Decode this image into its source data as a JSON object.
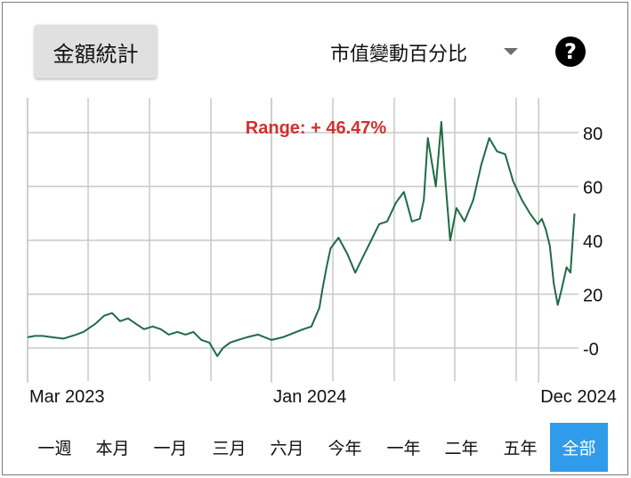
{
  "summary_button": {
    "label": "金額統計"
  },
  "metric_select": {
    "selected": "市值變動百分比"
  },
  "help_icon": {
    "glyph": "?"
  },
  "range_buttons": [
    {
      "label": "一週",
      "active": false
    },
    {
      "label": "本月",
      "active": false
    },
    {
      "label": "一月",
      "active": false
    },
    {
      "label": "三月",
      "active": false
    },
    {
      "label": "六月",
      "active": false
    },
    {
      "label": "今年",
      "active": false
    },
    {
      "label": "一年",
      "active": false
    },
    {
      "label": "二年",
      "active": false
    },
    {
      "label": "五年",
      "active": false
    },
    {
      "label": "全部",
      "active": true
    }
  ],
  "colors": {
    "line": "#1f6b45",
    "annotation": "#d32f2f",
    "grid": "#c8c8c8",
    "active_range": "#2f9bea"
  },
  "chart_data": {
    "type": "line",
    "title": "",
    "annotation": "Range: + 46.47%",
    "xlabel": "",
    "ylabel": "",
    "x_tick_labels": [
      "Mar 2023",
      "Jan 2024",
      "Dec 2024"
    ],
    "x_tick_dates": [
      "2023-03-01",
      "2024-01-01",
      "2024-12-01"
    ],
    "y_ticks": [
      0,
      20,
      40,
      60,
      80
    ],
    "y_tick_labels": [
      "-0",
      "20",
      "40",
      "60",
      "80"
    ],
    "ylim": [
      -4,
      90
    ],
    "xlim": [
      "2023-03-01",
      "2025-01-20"
    ],
    "grid": true,
    "y_axis_side": "right",
    "series": [
      {
        "x": [
          "2023-03-01",
          "2023-03-10",
          "2023-03-20",
          "2023-04-01",
          "2023-04-15",
          "2023-05-01",
          "2023-05-10",
          "2023-05-25",
          "2023-06-05",
          "2023-06-15",
          "2023-06-25",
          "2023-07-05",
          "2023-07-15",
          "2023-07-25",
          "2023-08-05",
          "2023-08-15",
          "2023-08-25",
          "2023-09-05",
          "2023-09-15",
          "2023-09-25",
          "2023-10-05",
          "2023-10-15",
          "2023-10-25",
          "2023-11-01",
          "2023-11-10",
          "2023-11-20",
          "2023-12-01",
          "2023-12-15",
          "2024-01-01",
          "2024-01-15",
          "2024-02-01",
          "2024-02-10",
          "2024-02-20",
          "2024-03-01",
          "2024-03-05",
          "2024-03-10",
          "2024-03-15",
          "2024-03-25",
          "2024-04-05",
          "2024-04-15",
          "2024-04-25",
          "2024-05-05",
          "2024-05-15",
          "2024-05-25",
          "2024-06-05",
          "2024-06-15",
          "2024-06-25",
          "2024-07-05",
          "2024-07-10",
          "2024-07-15",
          "2024-07-25",
          "2024-08-01",
          "2024-08-05",
          "2024-08-12",
          "2024-08-20",
          "2024-08-30",
          "2024-09-10",
          "2024-09-20",
          "2024-09-30",
          "2024-10-10",
          "2024-10-20",
          "2024-10-30",
          "2024-11-10",
          "2024-11-20",
          "2024-11-30",
          "2024-12-05",
          "2024-12-10",
          "2024-12-15",
          "2024-12-20",
          "2024-12-25",
          "2024-12-30",
          "2025-01-05",
          "2025-01-10",
          "2025-01-15"
        ],
        "y": [
          4,
          4.5,
          4.5,
          4,
          3.5,
          5,
          6,
          9,
          12,
          13,
          10,
          11,
          9,
          7,
          8,
          7,
          5,
          6,
          5,
          6,
          3,
          2,
          -3,
          0,
          2,
          3,
          4,
          5,
          3,
          4,
          6,
          7,
          8,
          15,
          22,
          30,
          37,
          41,
          35,
          28,
          34,
          40,
          46,
          47,
          54,
          58,
          47,
          48,
          55,
          78,
          60,
          84,
          66,
          40,
          52,
          47,
          55,
          68,
          78,
          73,
          72,
          62,
          55,
          50,
          46,
          48,
          44,
          38,
          24,
          16,
          22,
          30,
          28,
          50
        ]
      }
    ]
  }
}
